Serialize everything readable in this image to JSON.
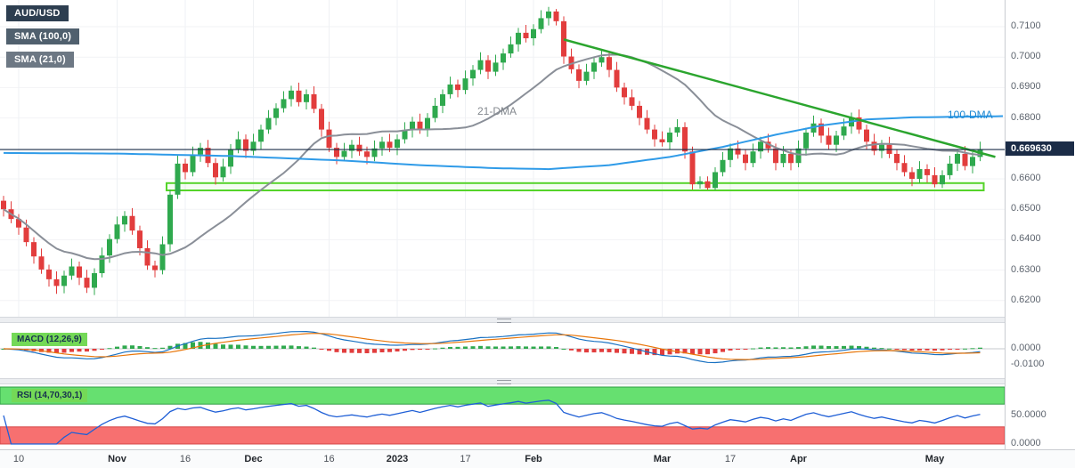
{
  "overlays": {
    "symbol_badge": "AUD/USD",
    "sma100_badge": "SMA (100,0)",
    "sma21_badge": "SMA (21,0)",
    "macd_badge": "MACD (12,26,9)",
    "rsi_badge": "RSI (14,70,30,1)",
    "dma21_annotation": "21-DMA",
    "dma100_annotation": "100-DMA",
    "current_price_label": "0.669630"
  },
  "colors": {
    "bull": "#2fa94e",
    "bear": "#e23d3d",
    "sma21": "#8a8f98",
    "sma100": "#2f9be8",
    "trendline": "#2ba52e",
    "support_zone": "#55d42a",
    "price_line": "#1b2c47",
    "macd_line": "#1971c2",
    "macd_signal": "#e8760a",
    "hist_up": "#2fa94e",
    "hist_down": "#e23d3d",
    "rsi_line": "#1f5fd6",
    "rsi_overbought_band": "#66e070",
    "rsi_oversold_band": "#f77070",
    "badge_navy": "#2d3e50",
    "badge_slate": "#50606e",
    "badge_gray": "#6d7884",
    "indicator_badge_green": "#74d957"
  },
  "chart_data": {
    "type": "candlestick",
    "title": "AUD/USD daily chart with 21-DMA, 100-DMA, descending trendline, support zone, MACD and RSI",
    "current_price": 0.66963,
    "y_ticks_main": [
      0.71,
      0.7,
      0.69,
      0.68,
      0.66,
      0.65,
      0.64,
      0.63,
      0.62
    ],
    "x_ticks": [
      {
        "label": "10",
        "i": 2,
        "major": false
      },
      {
        "label": "Nov",
        "i": 15,
        "major": true
      },
      {
        "label": "16",
        "i": 24,
        "major": false
      },
      {
        "label": "Dec",
        "i": 33,
        "major": true
      },
      {
        "label": "16",
        "i": 43,
        "major": false
      },
      {
        "label": "2023",
        "i": 52,
        "major": true
      },
      {
        "label": "17",
        "i": 61,
        "major": false
      },
      {
        "label": "Feb",
        "i": 70,
        "major": true
      },
      {
        "label": "Mar",
        "i": 87,
        "major": true
      },
      {
        "label": "17",
        "i": 96,
        "major": false
      },
      {
        "label": "Apr",
        "i": 105,
        "major": true
      },
      {
        "label": "May",
        "i": 123,
        "major": true
      }
    ],
    "candles": [
      [
        0.6528,
        0.6544,
        0.6476,
        0.65
      ],
      [
        0.65,
        0.6526,
        0.6454,
        0.6468
      ],
      [
        0.6468,
        0.6484,
        0.6416,
        0.644
      ],
      [
        0.644,
        0.6466,
        0.6378,
        0.6392
      ],
      [
        0.6392,
        0.6408,
        0.6321,
        0.6345
      ],
      [
        0.6345,
        0.6371,
        0.6288,
        0.6302
      ],
      [
        0.6302,
        0.6318,
        0.6246,
        0.627
      ],
      [
        0.627,
        0.6296,
        0.6222,
        0.6248
      ],
      [
        0.6248,
        0.6298,
        0.6224,
        0.6282
      ],
      [
        0.6282,
        0.6338,
        0.6268,
        0.6312
      ],
      [
        0.6312,
        0.6328,
        0.6251,
        0.6275
      ],
      [
        0.6275,
        0.6301,
        0.6225,
        0.6242
      ],
      [
        0.6242,
        0.6306,
        0.6218,
        0.629
      ],
      [
        0.629,
        0.6374,
        0.6276,
        0.6348
      ],
      [
        0.6348,
        0.6418,
        0.6324,
        0.6402
      ],
      [
        0.6402,
        0.6476,
        0.6388,
        0.645
      ],
      [
        0.645,
        0.6494,
        0.6426,
        0.6478
      ],
      [
        0.6478,
        0.6504,
        0.6416,
        0.643
      ],
      [
        0.643,
        0.6446,
        0.6348,
        0.6372
      ],
      [
        0.6372,
        0.6398,
        0.6301,
        0.6315
      ],
      [
        0.6315,
        0.6331,
        0.6276,
        0.63
      ],
      [
        0.63,
        0.6411,
        0.6286,
        0.6385
      ],
      [
        0.6385,
        0.6564,
        0.6361,
        0.6548
      ],
      [
        0.6548,
        0.6676,
        0.6534,
        0.665
      ],
      [
        0.665,
        0.6666,
        0.6598,
        0.6622
      ],
      [
        0.6622,
        0.6706,
        0.6608,
        0.668
      ],
      [
        0.668,
        0.6718,
        0.6656,
        0.6702
      ],
      [
        0.6702,
        0.6728,
        0.6638,
        0.6652
      ],
      [
        0.6652,
        0.6668,
        0.6581,
        0.6605
      ],
      [
        0.6605,
        0.6666,
        0.6591,
        0.664
      ],
      [
        0.664,
        0.6714,
        0.6616,
        0.6698
      ],
      [
        0.6698,
        0.6756,
        0.6684,
        0.673
      ],
      [
        0.673,
        0.6746,
        0.6668,
        0.6692
      ],
      [
        0.6692,
        0.6748,
        0.6678,
        0.6722
      ],
      [
        0.6722,
        0.6778,
        0.6698,
        0.6762
      ],
      [
        0.6762,
        0.6826,
        0.6748,
        0.68
      ],
      [
        0.68,
        0.6848,
        0.6776,
        0.6832
      ],
      [
        0.6832,
        0.6888,
        0.6818,
        0.6862
      ],
      [
        0.6862,
        0.6906,
        0.6838,
        0.689
      ],
      [
        0.689,
        0.6916,
        0.6838,
        0.6852
      ],
      [
        0.6852,
        0.6894,
        0.6828,
        0.6878
      ],
      [
        0.6878,
        0.6904,
        0.6816,
        0.683
      ],
      [
        0.683,
        0.6846,
        0.6738,
        0.6762
      ],
      [
        0.6762,
        0.6788,
        0.6688,
        0.6702
      ],
      [
        0.6702,
        0.6718,
        0.6648,
        0.6672
      ],
      [
        0.6672,
        0.6718,
        0.6658,
        0.6692
      ],
      [
        0.6692,
        0.6728,
        0.6668,
        0.6712
      ],
      [
        0.6712,
        0.6738,
        0.6676,
        0.669
      ],
      [
        0.669,
        0.6706,
        0.6648,
        0.6672
      ],
      [
        0.6672,
        0.6726,
        0.6658,
        0.67
      ],
      [
        0.67,
        0.6738,
        0.6676,
        0.6722
      ],
      [
        0.6722,
        0.6748,
        0.6688,
        0.6702
      ],
      [
        0.6702,
        0.6746,
        0.6678,
        0.673
      ],
      [
        0.673,
        0.6786,
        0.6716,
        0.676
      ],
      [
        0.676,
        0.6804,
        0.6736,
        0.6788
      ],
      [
        0.6788,
        0.6814,
        0.6748,
        0.6762
      ],
      [
        0.6762,
        0.6816,
        0.6738,
        0.68
      ],
      [
        0.68,
        0.6866,
        0.6786,
        0.684
      ],
      [
        0.684,
        0.6894,
        0.6816,
        0.6878
      ],
      [
        0.6878,
        0.6936,
        0.6864,
        0.691
      ],
      [
        0.691,
        0.6926,
        0.6868,
        0.6892
      ],
      [
        0.6892,
        0.6956,
        0.6878,
        0.693
      ],
      [
        0.693,
        0.6974,
        0.6906,
        0.6958
      ],
      [
        0.6958,
        0.7016,
        0.6944,
        0.699
      ],
      [
        0.699,
        0.7006,
        0.6928,
        0.6952
      ],
      [
        0.6952,
        0.7008,
        0.6938,
        0.6982
      ],
      [
        0.6982,
        0.7028,
        0.6958,
        0.7012
      ],
      [
        0.7012,
        0.7068,
        0.6998,
        0.7042
      ],
      [
        0.7042,
        0.7096,
        0.7018,
        0.708
      ],
      [
        0.708,
        0.7106,
        0.7048,
        0.7062
      ],
      [
        0.7062,
        0.7108,
        0.7038,
        0.7092
      ],
      [
        0.7092,
        0.7154,
        0.7078,
        0.7128
      ],
      [
        0.7128,
        0.7165,
        0.7104,
        0.715
      ],
      [
        0.715,
        0.7158,
        0.7104,
        0.7118
      ],
      [
        0.7118,
        0.7134,
        0.6978,
        0.7002
      ],
      [
        0.7002,
        0.7028,
        0.6946,
        0.696
      ],
      [
        0.696,
        0.6976,
        0.6898,
        0.6922
      ],
      [
        0.6922,
        0.6978,
        0.6908,
        0.6952
      ],
      [
        0.6952,
        0.6998,
        0.6928,
        0.6982
      ],
      [
        0.6982,
        0.7026,
        0.6968,
        0.7
      ],
      [
        0.7,
        0.7016,
        0.6934,
        0.6958
      ],
      [
        0.6958,
        0.6984,
        0.6886,
        0.69
      ],
      [
        0.69,
        0.6916,
        0.6844,
        0.6868
      ],
      [
        0.6868,
        0.6894,
        0.6826,
        0.684
      ],
      [
        0.684,
        0.6856,
        0.6776,
        0.68
      ],
      [
        0.68,
        0.6826,
        0.6748,
        0.6762
      ],
      [
        0.6762,
        0.6778,
        0.6706,
        0.673
      ],
      [
        0.673,
        0.6756,
        0.6706,
        0.672
      ],
      [
        0.672,
        0.6768,
        0.6696,
        0.6752
      ],
      [
        0.6752,
        0.6796,
        0.6738,
        0.677
      ],
      [
        0.677,
        0.6786,
        0.6666,
        0.669
      ],
      [
        0.669,
        0.6706,
        0.6565,
        0.6582
      ],
      [
        0.6582,
        0.6608,
        0.6568,
        0.6592
      ],
      [
        0.6592,
        0.6608,
        0.6564,
        0.657
      ],
      [
        0.657,
        0.6638,
        0.6562,
        0.6622
      ],
      [
        0.6622,
        0.6688,
        0.6608,
        0.6662
      ],
      [
        0.6662,
        0.6716,
        0.6638,
        0.67
      ],
      [
        0.67,
        0.6726,
        0.6666,
        0.668
      ],
      [
        0.668,
        0.6696,
        0.6628,
        0.6652
      ],
      [
        0.6652,
        0.6716,
        0.6638,
        0.669
      ],
      [
        0.669,
        0.6738,
        0.6666,
        0.6722
      ],
      [
        0.6722,
        0.6748,
        0.6686,
        0.67
      ],
      [
        0.67,
        0.6716,
        0.6628,
        0.6652
      ],
      [
        0.6652,
        0.6708,
        0.6638,
        0.6682
      ],
      [
        0.6682,
        0.6698,
        0.6628,
        0.6652
      ],
      [
        0.6652,
        0.6726,
        0.6638,
        0.67
      ],
      [
        0.67,
        0.6768,
        0.6676,
        0.6752
      ],
      [
        0.6752,
        0.6808,
        0.6738,
        0.6782
      ],
      [
        0.6782,
        0.6798,
        0.6718,
        0.6742
      ],
      [
        0.6742,
        0.6768,
        0.6698,
        0.6712
      ],
      [
        0.6712,
        0.6758,
        0.6688,
        0.6742
      ],
      [
        0.6742,
        0.6798,
        0.6728,
        0.6772
      ],
      [
        0.6772,
        0.6818,
        0.6748,
        0.6802
      ],
      [
        0.6802,
        0.6828,
        0.6748,
        0.6762
      ],
      [
        0.6762,
        0.6778,
        0.6698,
        0.6722
      ],
      [
        0.6722,
        0.6748,
        0.6678,
        0.6692
      ],
      [
        0.6692,
        0.6728,
        0.6668,
        0.6712
      ],
      [
        0.6712,
        0.6738,
        0.6668,
        0.6682
      ],
      [
        0.6682,
        0.6698,
        0.6628,
        0.6652
      ],
      [
        0.6652,
        0.6678,
        0.6608,
        0.6622
      ],
      [
        0.6622,
        0.6638,
        0.6576,
        0.66
      ],
      [
        0.66,
        0.6658,
        0.6586,
        0.6632
      ],
      [
        0.6632,
        0.6648,
        0.6588,
        0.6612
      ],
      [
        0.6612,
        0.6638,
        0.6572,
        0.6582
      ],
      [
        0.6582,
        0.6628,
        0.657,
        0.6612
      ],
      [
        0.6612,
        0.6676,
        0.6598,
        0.665
      ],
      [
        0.665,
        0.6698,
        0.6626,
        0.6682
      ],
      [
        0.6682,
        0.6708,
        0.6628,
        0.6642
      ],
      [
        0.6642,
        0.6688,
        0.6618,
        0.6672
      ],
      [
        0.6672,
        0.6722,
        0.6658,
        0.6696
      ]
    ],
    "sma21_source": "computed from candle closes, period 21",
    "dma100_points": [
      [
        0,
        0.6685
      ],
      [
        15,
        0.6683
      ],
      [
        30,
        0.6675
      ],
      [
        45,
        0.666
      ],
      [
        55,
        0.6645
      ],
      [
        65,
        0.6635
      ],
      [
        72,
        0.6632
      ],
      [
        80,
        0.6645
      ],
      [
        88,
        0.6672
      ],
      [
        95,
        0.6705
      ],
      [
        102,
        0.6745
      ],
      [
        108,
        0.6775
      ],
      [
        114,
        0.6795
      ],
      [
        120,
        0.6802
      ],
      [
        132,
        0.6806
      ]
    ],
    "trendline": {
      "i1": 74,
      "p1": 0.7058,
      "i2": 131,
      "p2": 0.6672
    },
    "support_zone": {
      "top": 0.6586,
      "bottom": 0.6562,
      "i1": 22,
      "i2": 129
    },
    "macd": {
      "fast": 12,
      "slow": 26,
      "signal": 9,
      "y_ticks": [
        {
          "v": 0,
          "label": "0.0000"
        },
        {
          "v": -0.01,
          "label": "-0.0100"
        }
      ]
    },
    "rsi": {
      "period": 14,
      "overbought": 70,
      "oversold": 30,
      "y_ticks": [
        {
          "v": 50,
          "label": "50.0000"
        },
        {
          "v": 0,
          "label": "0.0000"
        }
      ]
    }
  }
}
